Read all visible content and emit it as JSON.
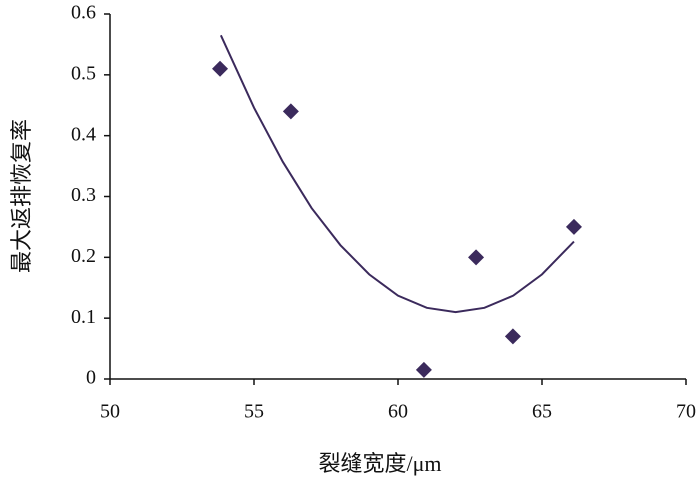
{
  "chart_data": {
    "type": "scatter",
    "x_label": "裂缝宽度/μm",
    "y_label": "最大返排恢复率",
    "series": [
      {
        "color": "#3b2a5c",
        "x": [
          53.82,
          56.28,
          60.9,
          62.71,
          63.99,
          66.11
        ],
        "values": [
          0.51,
          0.44,
          0.015,
          0.2,
          0.07,
          0.25
        ]
      }
    ],
    "trendline": {
      "color": "#3b2a5c",
      "x": [
        53.85,
        55,
        56,
        57,
        58,
        59,
        60,
        61,
        62,
        63,
        64,
        65,
        66.11
      ],
      "values": [
        0.565,
        0.446,
        0.357,
        0.281,
        0.22,
        0.172,
        0.137,
        0.117,
        0.11,
        0.117,
        0.137,
        0.172,
        0.226
      ]
    },
    "xlim": [
      50,
      70
    ],
    "xticks": [
      50,
      55,
      60,
      65,
      70
    ],
    "ylim": [
      0,
      0.6
    ],
    "yticks": [
      0,
      0.1,
      0.2,
      0.3,
      0.4,
      0.5,
      0.6
    ]
  }
}
